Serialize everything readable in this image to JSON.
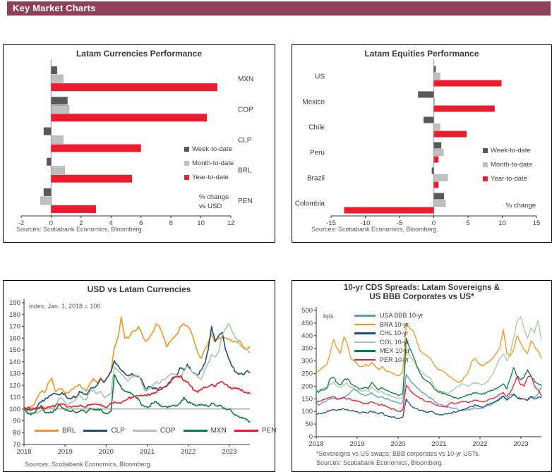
{
  "header": {
    "title": "Key Market Charts",
    "bg_color": "#8E4257"
  },
  "colors": {
    "week_to_date": "#595959",
    "month_to_date": "#BFBFBF",
    "year_to_date": "#ED1B2E",
    "orange": "#F7941D",
    "navy": "#1F4E79",
    "sage": "#A6C9A2",
    "green": "#0E7C42",
    "red": "#ED1B2E",
    "light_blue": "#5B9BD5"
  },
  "chart_data": [
    {
      "id": "latam-currencies",
      "type": "bar",
      "orientation": "horizontal",
      "title": "Latam Currencies Performance",
      "categories": [
        "MXN",
        "COP",
        "CLP",
        "BRL",
        "PEN"
      ],
      "series": [
        {
          "name": "Week-to-date",
          "color": "#595959",
          "values": [
            0.4,
            1.1,
            -0.5,
            -0.3,
            -0.5
          ]
        },
        {
          "name": "Month-to-date",
          "color": "#BFBFBF",
          "values": [
            0.8,
            1.2,
            0.8,
            0.9,
            -0.7
          ]
        },
        {
          "name": "Year-to-date",
          "color": "#ED1B2E",
          "values": [
            11.1,
            10.4,
            6.0,
            5.4,
            3.0
          ]
        }
      ],
      "xlim": [
        -2,
        12
      ],
      "xticks": [
        -2,
        0,
        2,
        4,
        6,
        8,
        10,
        12
      ],
      "note": "% change\nvs USD",
      "label_side": "right",
      "source": "Sources: Scotiabank Economics, Bloomberg."
    },
    {
      "id": "latam-equities",
      "type": "bar",
      "orientation": "horizontal",
      "title": "Latam Equities Performance",
      "categories": [
        "US",
        "Mexico",
        "Chile",
        "Peru",
        "Brazil",
        "Colombia"
      ],
      "series": [
        {
          "name": "Week-to-date",
          "color": "#595959",
          "values": [
            0.3,
            -2.3,
            -1.5,
            1.1,
            -0.3,
            1.5
          ]
        },
        {
          "name": "Month-to-date",
          "color": "#BFBFBF",
          "values": [
            0.9,
            0.1,
            0.9,
            1.4,
            2.0,
            1.7
          ]
        },
        {
          "name": "Year-to-date",
          "color": "#ED1B2E",
          "values": [
            9.9,
            8.9,
            4.8,
            0.7,
            0.7,
            -13.1
          ]
        }
      ],
      "xlim": [
        -15,
        15
      ],
      "xticks": [
        -15,
        -10,
        -5,
        0,
        5,
        10,
        15
      ],
      "note": "% change",
      "label_side": "left",
      "source": "Sources: Scotiabank Economics, Bloomberg."
    },
    {
      "id": "usd-vs-latam",
      "type": "line",
      "title": "USD vs Latam Currencies",
      "annotation": "index, Jan. 1, 2018 = 100",
      "ylim": [
        70,
        190
      ],
      "ytick_step": 10,
      "baseline": 100,
      "x_years": [
        "2018",
        "2019",
        "2020",
        "2021",
        "2022",
        "2023"
      ],
      "x_monthly_start": "2018-01",
      "x_monthly_end": "2023-06",
      "legend_position": "bottom",
      "series": [
        {
          "name": "BRL",
          "color": "#F7941D",
          "values": [
            100,
            100,
            102,
            104,
            110,
            115,
            114,
            122,
            126,
            115,
            117,
            117,
            113,
            114,
            117,
            119,
            121,
            117,
            115,
            122,
            126,
            122,
            127,
            122,
            127,
            132,
            152,
            160,
            178,
            160,
            160,
            165,
            166,
            170,
            163,
            157,
            160,
            165,
            172,
            170,
            162,
            153,
            157,
            160,
            163,
            170,
            172,
            170,
            166,
            157,
            148,
            143,
            150,
            156,
            163,
            157,
            160,
            160,
            160,
            159,
            157,
            157,
            158,
            153,
            151,
            152
          ]
        },
        {
          "name": "CLP",
          "color": "#1F4E79",
          "values": [
            100,
            99,
            99,
            100,
            103,
            106,
            108,
            110,
            112,
            113,
            112,
            114,
            111,
            109,
            110,
            110,
            115,
            113,
            112,
            117,
            118,
            120,
            125,
            123,
            127,
            131,
            141,
            137,
            133,
            130,
            128,
            130,
            128,
            128,
            124,
            117,
            119,
            117,
            118,
            116,
            118,
            120,
            123,
            127,
            129,
            135,
            133,
            138,
            133,
            130,
            129,
            133,
            138,
            150,
            170,
            157,
            162,
            165,
            150,
            142,
            136,
            131,
            130,
            129,
            132,
            131
          ]
        },
        {
          "name": "COP",
          "color": "#A6C9A2",
          "values": [
            100,
            98,
            97,
            96,
            97,
            99,
            99,
            102,
            101,
            102,
            108,
            109,
            105,
            104,
            106,
            108,
            112,
            108,
            108,
            115,
            116,
            113,
            115,
            110,
            111,
            113,
            136,
            133,
            130,
            126,
            124,
            127,
            129,
            128,
            121,
            115,
            118,
            120,
            123,
            122,
            125,
            126,
            129,
            130,
            128,
            126,
            132,
            136,
            133,
            131,
            127,
            125,
            133,
            139,
            146,
            144,
            148,
            162,
            168,
            172,
            165,
            160,
            155,
            152,
            150,
            148
          ]
        },
        {
          "name": "MXN",
          "color": "#0E7C42",
          "values": [
            100,
            96,
            95,
            97,
            101,
            103,
            97,
            97,
            97,
            99,
            104,
            101,
            99,
            98,
            99,
            97,
            98,
            99,
            97,
            101,
            100,
            99,
            100,
            97,
            96,
            98,
            129,
            123,
            118,
            115,
            114,
            113,
            111,
            108,
            103,
            102,
            102,
            105,
            106,
            103,
            102,
            102,
            102,
            103,
            103,
            105,
            110,
            106,
            105,
            104,
            103,
            104,
            103,
            102,
            105,
            103,
            103,
            102,
            100,
            100,
            97,
            95,
            93,
            92,
            91,
            89
          ]
        },
        {
          "name": "PEN",
          "color": "#ED1B2E",
          "values": [
            100,
            101,
            100,
            100,
            101,
            101,
            101,
            102,
            102,
            103,
            104,
            104,
            103,
            102,
            102,
            102,
            103,
            102,
            102,
            104,
            104,
            104,
            104,
            102,
            102,
            105,
            106,
            105,
            105,
            107,
            109,
            110,
            111,
            111,
            111,
            112,
            112,
            113,
            114,
            118,
            118,
            119,
            122,
            126,
            127,
            128,
            124,
            123,
            119,
            116,
            114,
            117,
            118,
            119,
            121,
            119,
            122,
            123,
            121,
            118,
            117,
            118,
            117,
            115,
            114,
            113
          ]
        }
      ],
      "source": "Sources: Scotiabank Economics, Bloomberg."
    },
    {
      "id": "cds-spreads",
      "type": "line",
      "title": "10-yr CDS Spreads: Latam Sovereigns &\nUS BBB Corporates vs US*",
      "unit_label": "bps",
      "ylim": [
        0,
        500
      ],
      "ytick_step": 50,
      "x_years": [
        "2018",
        "2019",
        "2020",
        "2021",
        "2022",
        "2023"
      ],
      "x_monthly_start": "2018-01",
      "x_monthly_end": "2023-06",
      "legend_position": "top-left",
      "series": [
        {
          "name": "USA BBB 10-yr",
          "color": "#5B9BD5",
          "values": [
            125,
            128,
            138,
            142,
            148,
            152,
            148,
            152,
            158,
            165,
            178,
            190,
            178,
            168,
            162,
            166,
            175,
            162,
            155,
            158,
            152,
            148,
            143,
            138,
            132,
            138,
            248,
            225,
            210,
            195,
            182,
            172,
            162,
            155,
            142,
            132,
            126,
            122,
            118,
            114,
            110,
            106,
            104,
            105,
            108,
            110,
            114,
            110,
            112,
            120,
            126,
            132,
            142,
            155,
            162,
            150,
            165,
            170,
            155,
            148,
            150,
            145,
            160,
            155,
            170,
            195
          ]
        },
        {
          "name": "BRA 10-yr",
          "color": "#F7941D",
          "values": [
            250,
            262,
            275,
            285,
            330,
            385,
            350,
            330,
            395,
            365,
            310,
            300,
            285,
            278,
            285,
            280,
            295,
            280,
            265,
            278,
            262,
            258,
            250,
            245,
            242,
            255,
            450,
            430,
            420,
            380,
            340,
            330,
            320,
            310,
            285,
            270,
            262,
            255,
            245,
            235,
            225,
            215,
            220,
            240,
            260,
            300,
            310,
            290,
            280,
            290,
            300,
            310,
            330,
            350,
            425,
            330,
            320,
            345,
            400,
            370,
            345,
            330,
            380,
            360,
            340,
            312
          ]
        },
        {
          "name": "CHL 10-yr",
          "color": "#1F4E79",
          "values": [
            90,
            92,
            95,
            98,
            105,
            108,
            104,
            106,
            110,
            108,
            102,
            100,
            98,
            95,
            96,
            94,
            100,
            96,
            90,
            95,
            85,
            80,
            78,
            75,
            72,
            78,
            150,
            130,
            115,
            110,
            105,
            100,
            98,
            100,
            95,
            90,
            88,
            90,
            92,
            95,
            98,
            100,
            105,
            110,
            115,
            120,
            125,
            120,
            118,
            125,
            130,
            135,
            140,
            150,
            160,
            145,
            155,
            165,
            155,
            150,
            150,
            145,
            160,
            150,
            155,
            157
          ]
        },
        {
          "name": "COL 10-yr",
          "color": "#A6C9A2",
          "values": [
            180,
            185,
            190,
            195,
            210,
            215,
            200,
            195,
            205,
            210,
            195,
            190,
            185,
            180,
            185,
            180,
            195,
            185,
            175,
            180,
            170,
            165,
            160,
            155,
            150,
            155,
            340,
            320,
            300,
            280,
            260,
            250,
            240,
            230,
            200,
            185,
            180,
            175,
            170,
            180,
            190,
            200,
            210,
            205,
            200,
            210,
            215,
            210,
            205,
            215,
            230,
            250,
            280,
            310,
            330,
            300,
            330,
            390,
            460,
            475,
            430,
            390,
            430,
            410,
            460,
            385
          ]
        },
        {
          "name": "MEX 10-yr",
          "color": "#0E7C42",
          "values": [
            175,
            180,
            185,
            190,
            230,
            235,
            215,
            205,
            225,
            230,
            210,
            200,
            195,
            190,
            195,
            190,
            215,
            200,
            185,
            195,
            185,
            180,
            175,
            170,
            165,
            170,
            390,
            350,
            320,
            280,
            250,
            230,
            220,
            210,
            190,
            180,
            175,
            170,
            165,
            160,
            155,
            150,
            155,
            160,
            165,
            170,
            175,
            170,
            168,
            175,
            180,
            185,
            190,
            200,
            210,
            190,
            230,
            274,
            240,
            225,
            235,
            265,
            240,
            220,
            210,
            202
          ]
        },
        {
          "name": "PER 10-yr",
          "color": "#ED1B2E",
          "values": [
            135,
            140,
            148,
            152,
            155,
            158,
            150,
            152,
            155,
            150,
            148,
            145,
            140,
            135,
            132,
            130,
            138,
            132,
            125,
            128,
            120,
            115,
            110,
            105,
            100,
            105,
            205,
            185,
            170,
            160,
            150,
            145,
            140,
            138,
            130,
            125,
            120,
            118,
            125,
            135,
            130,
            135,
            140,
            138,
            135,
            140,
            145,
            140,
            138,
            142,
            148,
            152,
            158,
            168,
            175,
            160,
            175,
            205,
            240,
            205,
            200,
            235,
            240,
            200,
            185,
            162
          ]
        }
      ],
      "footnote": "*Sovereigns vs US swaps; BBB corporates vs 10-yr USTs.",
      "source": "Sources: Scotiabank Economics, Bloomberg."
    }
  ]
}
